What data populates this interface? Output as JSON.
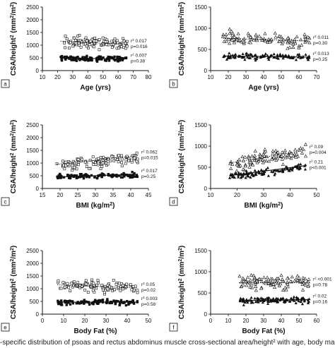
{
  "caption": "-specific distribution of psoas and rectus abdominus muscle cross-sectional area/height² with age, body mass index",
  "chart_data": [
    {
      "id": "a",
      "type": "scatter",
      "letter": "a",
      "xlabel": "Age (yrs)",
      "ylabel": "CSA/height² (mm²/m²)",
      "xlim": [
        10,
        80
      ],
      "ylim": [
        0,
        2500
      ],
      "xticks": [
        10,
        20,
        30,
        40,
        50,
        60,
        70,
        80
      ],
      "yticks": [
        0,
        500,
        1000,
        1500,
        2000,
        2500
      ],
      "series": [
        {
          "marker": "open-square",
          "xrange": [
            22,
            66
          ],
          "center": 1100,
          "slope": -3,
          "spread": 230,
          "n": 110,
          "seed": 11,
          "fit": {
            "x": [
              22,
              66
            ],
            "y": [
              1160,
              1030
            ],
            "style": "dotted"
          },
          "stats": [
            "r² 0.017",
            "p=0.016"
          ]
        },
        {
          "marker": "filled-square",
          "xrange": [
            22,
            66
          ],
          "center": 470,
          "slope": -0.5,
          "spread": 95,
          "n": 110,
          "seed": 12,
          "fit": {
            "x": [
              22,
              66
            ],
            "y": [
              490,
              455
            ],
            "style": "solid"
          },
          "stats": [
            "r² 0.007",
            "p=0.38"
          ]
        }
      ]
    },
    {
      "id": "b",
      "type": "scatter",
      "letter": "b",
      "xlabel": "Age (yrs)",
      "ylabel": "CSA/height² (mm²/m²)",
      "xlim": [
        10,
        70
      ],
      "ylim": [
        0,
        1500
      ],
      "xticks": [
        10,
        20,
        30,
        40,
        50,
        60,
        70
      ],
      "yticks": [
        0,
        500,
        1000,
        1500
      ],
      "series": [
        {
          "marker": "open-triangle",
          "xrange": [
            17,
            66
          ],
          "center": 740,
          "slope": -1.2,
          "spread": 170,
          "n": 110,
          "seed": 21,
          "fit": {
            "x": [
              17,
              66
            ],
            "y": [
              765,
              700
            ],
            "style": "dotted"
          },
          "stats": [
            "r² 0.011",
            "p=0.30"
          ]
        },
        {
          "marker": "filled-triangle",
          "xrange": [
            17,
            66
          ],
          "center": 330,
          "slope": -0.5,
          "spread": 70,
          "n": 110,
          "seed": 22,
          "fit": {
            "x": [
              17,
              66
            ],
            "y": [
              345,
              320
            ],
            "style": "solid"
          },
          "stats": [
            "r² 0.013",
            "p=0.25"
          ]
        }
      ]
    },
    {
      "id": "c",
      "type": "scatter",
      "letter": "c",
      "xlabel": "BMI (kg/m²)",
      "ylabel": "CSA/height² (mm²/m²)",
      "xlim": [
        15,
        45
      ],
      "ylim": [
        0,
        2500
      ],
      "xticks": [
        15,
        20,
        25,
        30,
        35,
        40,
        45
      ],
      "yticks": [
        0,
        500,
        1000,
        1500,
        2000,
        2500
      ],
      "series": [
        {
          "marker": "open-square",
          "xrange": [
            19,
            42
          ],
          "center": 1050,
          "slope": 14,
          "spread": 230,
          "n": 110,
          "seed": 31,
          "fit": {
            "x": [
              19,
              42
            ],
            "y": [
              950,
              1290
            ],
            "style": "dotted"
          },
          "stats": [
            "r² 0.062",
            "p=0.015"
          ]
        },
        {
          "marker": "filled-square",
          "xrange": [
            19,
            42
          ],
          "center": 490,
          "slope": 4,
          "spread": 95,
          "n": 110,
          "seed": 32,
          "fit": {
            "x": [
              19,
              42
            ],
            "y": [
              450,
              560
            ],
            "style": "solid"
          },
          "stats": [
            "r² 0.017",
            "p=0.25"
          ]
        }
      ]
    },
    {
      "id": "d",
      "type": "scatter",
      "letter": "d",
      "xlabel": "BMI (kg/m²)",
      "ylabel": "CSA/height² (mm²/m²)",
      "xlim": [
        10,
        50
      ],
      "ylim": [
        0,
        1500
      ],
      "xticks": [
        10,
        20,
        30,
        40,
        50
      ],
      "yticks": [
        0,
        500,
        1000,
        1500
      ],
      "series": [
        {
          "marker": "open-triangle",
          "xrange": [
            17,
            46
          ],
          "center": 720,
          "slope": 11,
          "spread": 170,
          "n": 110,
          "seed": 41,
          "fit": {
            "x": [
              17,
              46
            ],
            "y": [
              600,
              900
            ],
            "style": "dotted"
          },
          "stats": [
            "r² 0.09",
            "p=0.004"
          ]
        },
        {
          "marker": "filled-triangle",
          "xrange": [
            17,
            46
          ],
          "center": 390,
          "slope": 8,
          "spread": 75,
          "n": 110,
          "seed": 42,
          "fit": {
            "x": [
              17,
              46
            ],
            "y": [
              300,
              540
            ],
            "style": "solid"
          },
          "stats": [
            "r² 0.21",
            "p<0.001"
          ]
        }
      ]
    },
    {
      "id": "e",
      "type": "scatter",
      "letter": "e",
      "xlabel": "Body Fat (%)",
      "ylabel": "CSA/height² (mm²/m²)",
      "xlim": [
        0,
        50
      ],
      "ylim": [
        0,
        2500
      ],
      "xticks": [
        0,
        10,
        20,
        30,
        40,
        50
      ],
      "yticks": [
        0,
        500,
        1000,
        1500,
        2000,
        2500
      ],
      "series": [
        {
          "marker": "open-square",
          "xrange": [
            7,
            45
          ],
          "center": 1100,
          "slope": -3,
          "spread": 230,
          "n": 110,
          "seed": 51,
          "fit": {
            "x": [
              7,
              45
            ],
            "y": [
              1150,
              1030
            ],
            "style": "dotted"
          },
          "stats": [
            "r² 0.05",
            "p=0.02"
          ]
        },
        {
          "marker": "filled-square",
          "xrange": [
            7,
            45
          ],
          "center": 470,
          "slope": 0,
          "spread": 95,
          "n": 110,
          "seed": 52,
          "fit": {
            "x": [
              7,
              45
            ],
            "y": [
              470,
              470
            ],
            "style": "solid"
          },
          "stats": [
            "r² 0.003",
            "p=0.58"
          ]
        }
      ]
    },
    {
      "id": "f",
      "type": "scatter",
      "letter": "f",
      "xlabel": "Body Fat (%)",
      "ylabel": "CSA/height² (mm²/m²)",
      "xlim": [
        0,
        60
      ],
      "ylim": [
        0,
        1500
      ],
      "xticks": [
        0,
        10,
        20,
        30,
        40,
        50,
        60
      ],
      "yticks": [
        0,
        500,
        1000,
        1500
      ],
      "series": [
        {
          "marker": "open-triangle",
          "xrange": [
            16,
            56
          ],
          "center": 740,
          "slope": 0,
          "spread": 170,
          "n": 110,
          "seed": 61,
          "fit": {
            "x": [
              16,
              56
            ],
            "y": [
              740,
              740
            ],
            "style": "dotted"
          },
          "stats": [
            "r² <0.001",
            "p=0.78"
          ]
        },
        {
          "marker": "filled-triangle",
          "xrange": [
            16,
            56
          ],
          "center": 330,
          "slope": 0.5,
          "spread": 70,
          "n": 110,
          "seed": 62,
          "fit": {
            "x": [
              16,
              56
            ],
            "y": [
              320,
              345
            ],
            "style": "solid"
          },
          "stats": [
            "r² 0.02",
            "p=0.16"
          ]
        }
      ]
    }
  ]
}
